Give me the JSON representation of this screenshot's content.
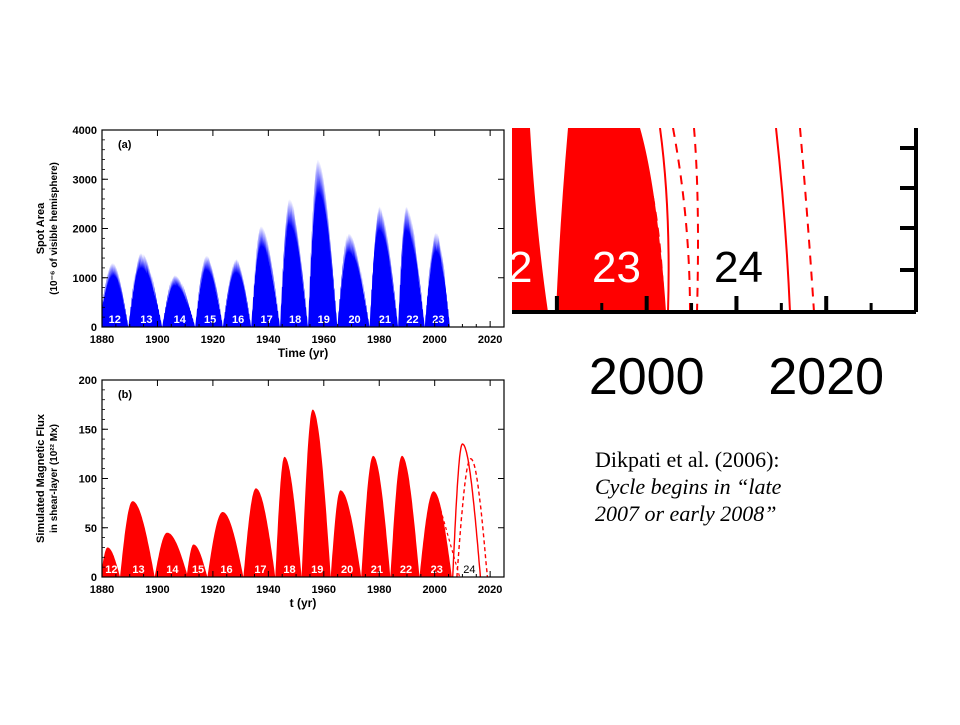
{
  "caption": {
    "line1": "Dikpati et al. (2006):",
    "line2": "Cycle begins in “late",
    "line3": "2007 or early 2008”"
  },
  "colors": {
    "observed": "#0000ff",
    "simulated": "#ff0000",
    "zoom": "#ff0000"
  },
  "chart_data": [
    {
      "type": "area",
      "panel_label": "(a)",
      "ylabel": "Spot Area",
      "ylabel2": "(10⁻⁶ of visible hemisphere)",
      "xlabel": "Time (yr)",
      "xlim": [
        1880,
        2025
      ],
      "ylim": [
        0,
        4000
      ],
      "xticks": [
        1880,
        1900,
        1920,
        1940,
        1960,
        1980,
        2000,
        2020
      ],
      "yticks": [
        0,
        1000,
        2000,
        3000,
        4000
      ],
      "cycles": [
        {
          "label": "12",
          "start": 1878.9,
          "end": 1889.5,
          "peak_year": 1883.9,
          "peak": 1300
        },
        {
          "label": "13",
          "start": 1889.5,
          "end": 1901.7,
          "peak_year": 1894.1,
          "peak": 1500
        },
        {
          "label": "14",
          "start": 1901.7,
          "end": 1913.6,
          "peak_year": 1906.2,
          "peak": 1050
        },
        {
          "label": "15",
          "start": 1913.6,
          "end": 1923.6,
          "peak_year": 1917.6,
          "peak": 1450
        },
        {
          "label": "16",
          "start": 1923.6,
          "end": 1933.8,
          "peak_year": 1928.4,
          "peak": 1380
        },
        {
          "label": "17",
          "start": 1933.8,
          "end": 1944.2,
          "peak_year": 1937.4,
          "peak": 2050
        },
        {
          "label": "18",
          "start": 1944.2,
          "end": 1954.3,
          "peak_year": 1947.5,
          "peak": 2600
        },
        {
          "label": "19",
          "start": 1954.3,
          "end": 1964.9,
          "peak_year": 1957.9,
          "peak": 3400
        },
        {
          "label": "20",
          "start": 1964.9,
          "end": 1976.5,
          "peak_year": 1968.9,
          "peak": 1900
        },
        {
          "label": "21",
          "start": 1976.5,
          "end": 1986.8,
          "peak_year": 1979.9,
          "peak": 2450
        },
        {
          "label": "22",
          "start": 1986.8,
          "end": 1996.4,
          "peak_year": 1989.6,
          "peak": 2450
        },
        {
          "label": "23",
          "start": 1996.4,
          "end": 2005.5,
          "peak_year": 2000.5,
          "peak": 1920
        }
      ]
    },
    {
      "type": "area",
      "panel_label": "(b)",
      "ylabel": "Simulated Magnetic Flux",
      "ylabel2": "in shear-layer (10²² Mx)",
      "xlabel": "t (yr)",
      "xlim": [
        1880,
        2025
      ],
      "ylim": [
        0,
        200
      ],
      "xticks": [
        1880,
        1900,
        1920,
        1940,
        1960,
        1980,
        2000,
        2020
      ],
      "yticks": [
        0,
        50,
        100,
        150,
        200
      ],
      "cycles": [
        {
          "label": "12",
          "start": 1879.5,
          "end": 1886.5,
          "peak_year": 1882.0,
          "peak": 30
        },
        {
          "label": "13",
          "start": 1886.5,
          "end": 1899.0,
          "peak_year": 1891.0,
          "peak": 77
        },
        {
          "label": "14",
          "start": 1899.0,
          "end": 1911.0,
          "peak_year": 1903.5,
          "peak": 45
        },
        {
          "label": "15",
          "start": 1910.5,
          "end": 1918.0,
          "peak_year": 1913.0,
          "peak": 33
        },
        {
          "label": "16",
          "start": 1918.0,
          "end": 1931.0,
          "peak_year": 1923.5,
          "peak": 66
        },
        {
          "label": "17",
          "start": 1931.0,
          "end": 1942.5,
          "peak_year": 1935.5,
          "peak": 90
        },
        {
          "label": "18",
          "start": 1942.5,
          "end": 1952.0,
          "peak_year": 1945.8,
          "peak": 122
        },
        {
          "label": "19",
          "start": 1952.0,
          "end": 1962.5,
          "peak_year": 1956.0,
          "peak": 170
        },
        {
          "label": "20",
          "start": 1962.5,
          "end": 1973.5,
          "peak_year": 1966.0,
          "peak": 88
        },
        {
          "label": "21",
          "start": 1973.5,
          "end": 1984.0,
          "peak_year": 1977.8,
          "peak": 123
        },
        {
          "label": "22",
          "start": 1984.0,
          "end": 1994.5,
          "peak_year": 1988.2,
          "peak": 123
        },
        {
          "label": "23",
          "start": 1994.5,
          "end": 2006.2,
          "peak_year": 1999.6,
          "peak": 87
        }
      ],
      "forecast_cycle": {
        "label": "24",
        "solid": {
          "start": 2006.5,
          "end": 2016.5,
          "peak_year": 2010.0,
          "peak": 135
        },
        "dashed": {
          "start": 2008.0,
          "end": 2019.0,
          "peak_year": 2013.0,
          "peak": 120
        },
        "dashed_decline": {
          "start": 2001.0,
          "end": 2009.0
        }
      }
    },
    {
      "type": "area",
      "panel_label": "zoom",
      "xlim": [
        1985,
        2030
      ],
      "xticks": [
        2000,
        2020
      ],
      "tick_labels": [
        "2000",
        "2020"
      ],
      "cycle_labels": [
        "2",
        "23",
        "24"
      ]
    }
  ]
}
